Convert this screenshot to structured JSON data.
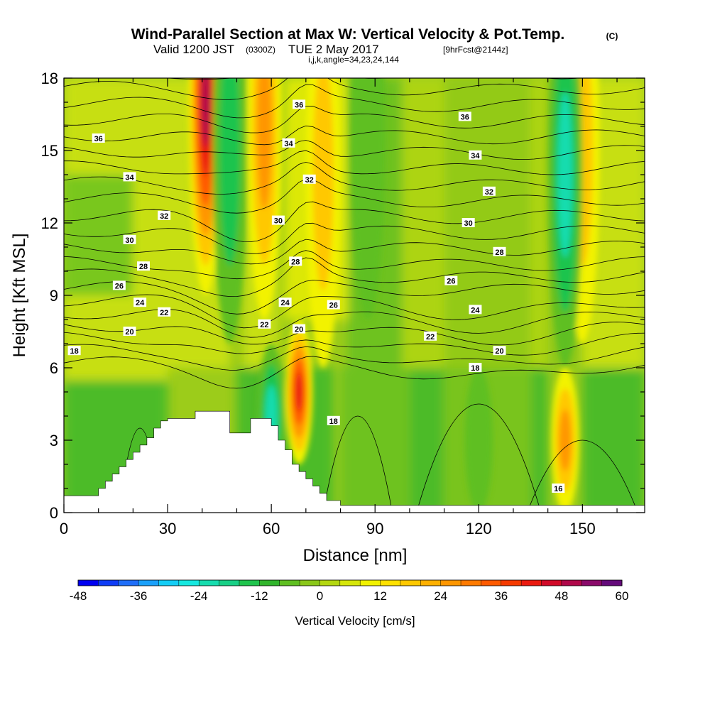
{
  "header": {
    "title": "Wind-Parallel Section at Max W: Vertical Velocity & Pot.Temp.",
    "title_mark": "(C)",
    "subtitle_valid": "Valid 1200 JST",
    "subtitle_z": "(0300Z)",
    "subtitle_date": "TUE 2 May 2017",
    "subtitle_fcst": "[9hrFcst@2144z]",
    "subtitle_ijk": "i,j,k,angle=34,23,24,144"
  },
  "chart_data": {
    "type": "heatmap",
    "xlabel": "Distance [nm]",
    "ylabel": "Height [Kft MSL]",
    "xlim": [
      0,
      168
    ],
    "ylim": [
      0,
      18
    ],
    "x_ticks": [
      "0",
      "30",
      "60",
      "90",
      "120",
      "150"
    ],
    "y_ticks": [
      "0",
      "3",
      "6",
      "9",
      "12",
      "15",
      "18"
    ],
    "colorbar": {
      "label": "Vertical Velocity [cm/s]",
      "min": -48,
      "max": 60,
      "step": 4,
      "tick_labels": [
        "-48",
        "-36",
        "-24",
        "-12",
        "0",
        "12",
        "24",
        "36",
        "48",
        "60"
      ]
    },
    "updraft_cores": [
      {
        "x": 41,
        "y": 17,
        "w": 52
      },
      {
        "x": 68,
        "y": 5,
        "w": 40
      },
      {
        "x": 145,
        "y": 3,
        "w": 28
      },
      {
        "x": 58,
        "y": 16,
        "w": 24
      },
      {
        "x": 75,
        "y": 14,
        "w": 20
      },
      {
        "x": 150,
        "y": 15,
        "w": 18
      }
    ],
    "downdraft_cores": [
      {
        "x": 48,
        "y": 15,
        "w": -20
      },
      {
        "x": 145,
        "y": 14,
        "w": -28
      },
      {
        "x": 60,
        "y": 4,
        "w": -28
      },
      {
        "x": 120,
        "y": 3,
        "w": -14
      },
      {
        "x": 88,
        "y": 16,
        "w": -12
      }
    ],
    "theta_contour_labels": [
      {
        "text": "36",
        "x": 10,
        "y": 15.5
      },
      {
        "text": "34",
        "x": 19,
        "y": 13.9
      },
      {
        "text": "32",
        "x": 29,
        "y": 12.3
      },
      {
        "text": "30",
        "x": 19,
        "y": 11.3
      },
      {
        "text": "28",
        "x": 23,
        "y": 10.2
      },
      {
        "text": "26",
        "x": 16,
        "y": 9.4
      },
      {
        "text": "24",
        "x": 22,
        "y": 8.7
      },
      {
        "text": "22",
        "x": 29,
        "y": 8.3
      },
      {
        "text": "20",
        "x": 19,
        "y": 7.5
      },
      {
        "text": "18",
        "x": 3,
        "y": 6.7
      },
      {
        "text": "36",
        "x": 68,
        "y": 16.9
      },
      {
        "text": "34",
        "x": 65,
        "y": 15.3
      },
      {
        "text": "32",
        "x": 71,
        "y": 13.8
      },
      {
        "text": "30",
        "x": 62,
        "y": 12.1
      },
      {
        "text": "28",
        "x": 67,
        "y": 10.4
      },
      {
        "text": "24",
        "x": 64,
        "y": 8.7
      },
      {
        "text": "26",
        "x": 78,
        "y": 8.6
      },
      {
        "text": "22",
        "x": 58,
        "y": 7.8
      },
      {
        "text": "20",
        "x": 68,
        "y": 7.6
      },
      {
        "text": "18",
        "x": 78,
        "y": 3.8
      },
      {
        "text": "36",
        "x": 116,
        "y": 16.4
      },
      {
        "text": "34",
        "x": 119,
        "y": 14.8
      },
      {
        "text": "32",
        "x": 123,
        "y": 13.3
      },
      {
        "text": "30",
        "x": 117,
        "y": 12.0
      },
      {
        "text": "28",
        "x": 126,
        "y": 10.8
      },
      {
        "text": "26",
        "x": 112,
        "y": 9.6
      },
      {
        "text": "24",
        "x": 119,
        "y": 8.4
      },
      {
        "text": "22",
        "x": 106,
        "y": 7.3
      },
      {
        "text": "20",
        "x": 126,
        "y": 6.7
      },
      {
        "text": "18",
        "x": 119,
        "y": 6.0
      },
      {
        "text": "16",
        "x": 143,
        "y": 1.0
      }
    ]
  }
}
